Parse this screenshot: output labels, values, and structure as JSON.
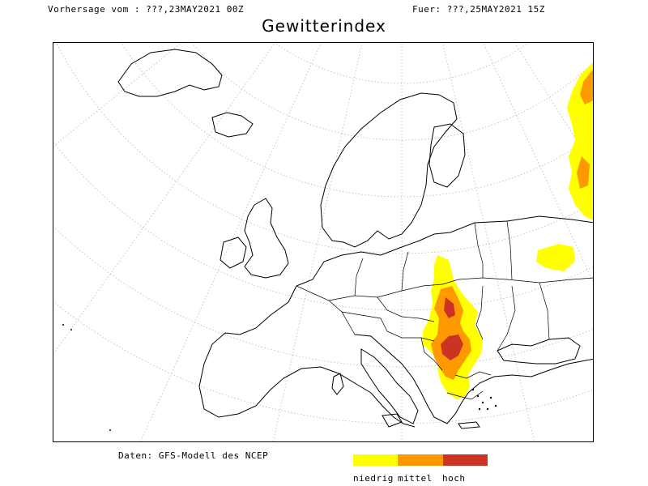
{
  "header": {
    "forecast_from": "Vorhersage vom : ???,23MAY2021 00Z",
    "valid_for": "Fuer: ???,25MAY2021 15Z"
  },
  "map": {
    "title": "Gewitterindex",
    "region": "Europe",
    "projection": "polar stereographic",
    "graticule": "dotted",
    "fill_colors": {
      "niedrig": "#ffff00",
      "mittel": "#ff9900",
      "hoch": "#cc3322"
    },
    "storm_areas": [
      "Hungary / Romania / Serbia",
      "Balkans / Greece",
      "Western Russia",
      "Ukraine"
    ]
  },
  "footer": {
    "data_source": "Daten: GFS-Modell des NCEP"
  },
  "legend": {
    "items": [
      {
        "label": "niedrig",
        "color": "#ffff00"
      },
      {
        "label": "mittel",
        "color": "#ff9900"
      },
      {
        "label": "hoch",
        "color": "#cc3322"
      }
    ]
  }
}
